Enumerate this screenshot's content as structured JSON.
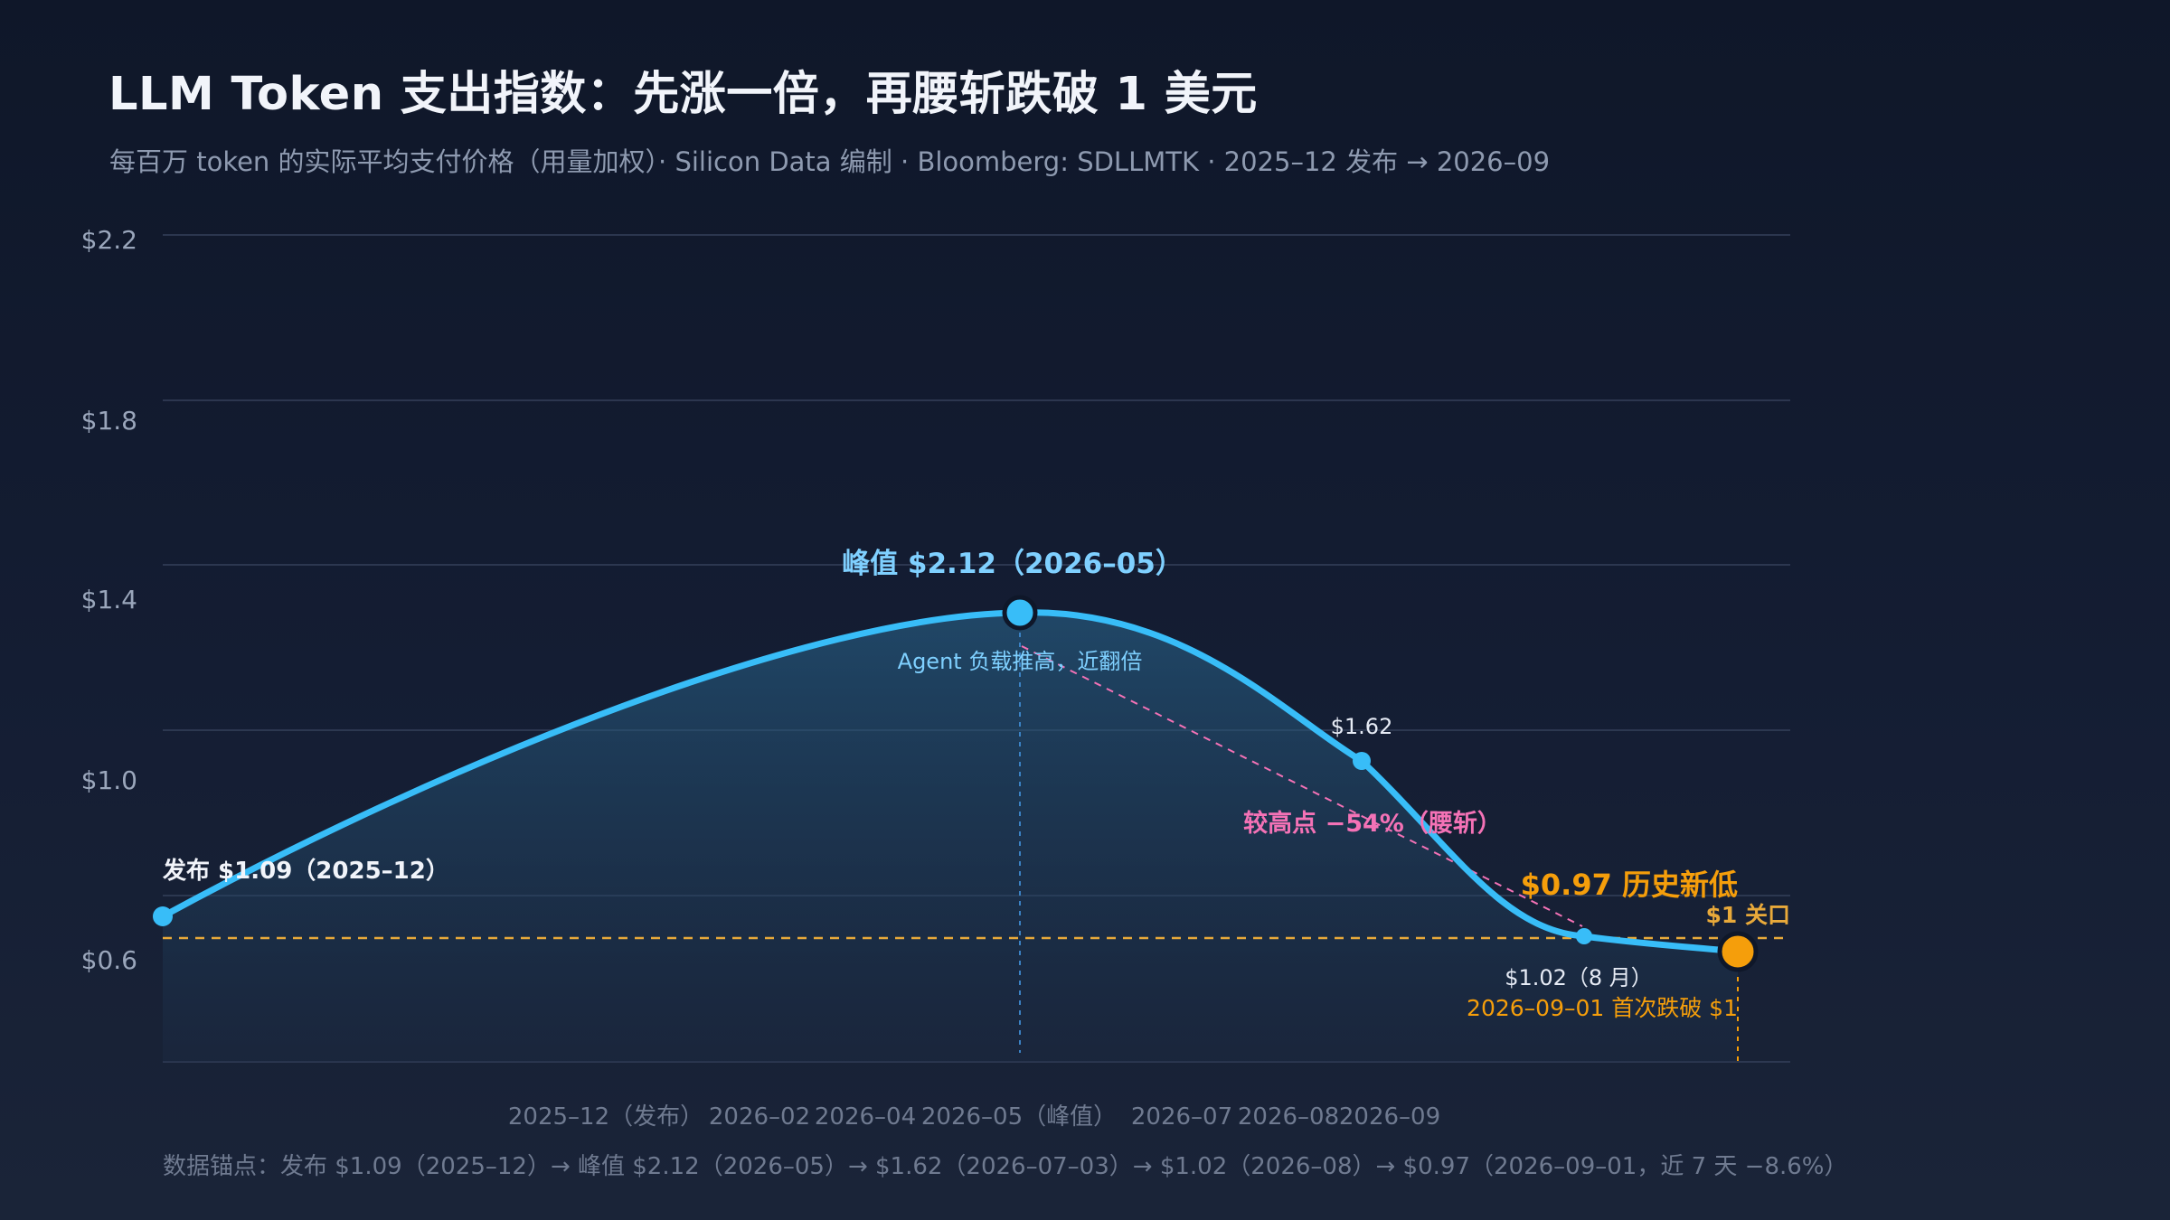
{
  "header": {
    "title": "LLM Token 支出指数：先涨一倍，再腰斩跌破 1 美元",
    "subtitle": "每百万 token 的实际平均支付价格（用量加权）· Silicon Data 编制 · Bloomberg: SDLLMTK · 2025–12 发布 → 2026–09"
  },
  "chart_data": {
    "type": "line",
    "title": "LLM Token 支出指数：先涨一倍，再腰斩跌破 1 美元",
    "x": [
      "2025–12",
      "2026–05",
      "2026–07–03",
      "2026–08",
      "2026–09–01"
    ],
    "series": [
      {
        "name": "",
        "values": [
          1.09,
          2.12,
          1.62,
          1.02,
          0.97
        ]
      }
    ],
    "y_ticks": [
      "$0.6",
      "$1.0",
      "$1.4",
      "$1.8",
      "$2.2"
    ],
    "y_tick_values": [
      0.6,
      1.0,
      1.4,
      1.8,
      2.2
    ],
    "x_tick_labels": [
      "2025–12（发布）",
      "2026–02",
      "2026–04",
      "2026–05（峰值）",
      "2026–07",
      "2026–08",
      "2026–09"
    ],
    "reference_line": {
      "value": 1.0,
      "label": "$1 关口",
      "color": "#e8a93a"
    },
    "annotations": {
      "start": "发布 $1.09（2025–12）",
      "peak": "峰值 $2.12（2026–05）",
      "peak_note": "Agent 负载推高，近翻倍",
      "jul": "$1.62",
      "drop": "较高点 −54%（腰斩）",
      "aug": "$1.02（8 月）",
      "low": "$0.97 历史新低",
      "low_note": "2026–09–01 首次跌破 $1"
    },
    "colors": {
      "line": "#38bdf8",
      "peak": "#38bdf8",
      "low": "#f59e0b",
      "drop": "#f472b6",
      "threshold": "#e8a93a"
    },
    "grid": true,
    "legend": "none",
    "footer": "数据锚点：发布 $1.09（2025–12）→ 峰值 $2.12（2026–05）→ $1.62（2026–07–03）→ $1.02（2026–08）→ $0.97（2026–09–01，近 7 天 −8.6%）"
  }
}
